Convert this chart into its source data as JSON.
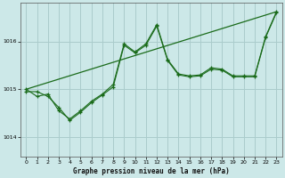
{
  "title": "Graphe pression niveau de la mer (hPa)",
  "background_color": "#cce8e8",
  "grid_color": "#aacccc",
  "line_color": "#1a6b1a",
  "marker_color": "#1a6b1a",
  "xlim": [
    -0.5,
    23.5
  ],
  "ylim": [
    1013.6,
    1016.8
  ],
  "yticks": [
    1014,
    1015,
    1016
  ],
  "xticks": [
    0,
    1,
    2,
    3,
    4,
    5,
    6,
    7,
    8,
    9,
    10,
    11,
    12,
    13,
    14,
    15,
    16,
    17,
    18,
    19,
    20,
    21,
    22,
    23
  ],
  "series1": {
    "x": [
      0,
      1,
      2,
      3,
      4,
      5,
      6,
      7,
      8,
      9,
      10,
      11,
      12,
      13,
      14,
      15,
      16,
      17,
      18,
      19,
      20,
      21,
      22,
      23
    ],
    "y": [
      1015.0,
      1014.85,
      1014.9,
      1014.55,
      1014.38,
      1014.55,
      1014.75,
      1014.9,
      1015.1,
      1015.95,
      1015.78,
      1015.95,
      1016.35,
      1015.62,
      1015.32,
      1015.28,
      1015.3,
      1015.45,
      1015.42,
      1015.28,
      1015.28,
      1015.28,
      1016.1,
      1016.62
    ]
  },
  "series2": {
    "x": [
      0,
      1,
      2,
      3,
      4,
      5,
      6,
      7,
      8,
      9,
      10,
      11,
      12,
      13,
      14,
      15,
      16,
      17,
      18,
      19,
      20,
      21,
      22,
      23
    ],
    "y": [
      1014.95,
      1014.95,
      1014.85,
      1014.62,
      1014.35,
      1014.52,
      1014.72,
      1014.88,
      1015.05,
      1015.92,
      1015.76,
      1015.92,
      1016.32,
      1015.6,
      1015.3,
      1015.26,
      1015.28,
      1015.42,
      1015.4,
      1015.26,
      1015.26,
      1015.26,
      1016.08,
      1016.6
    ]
  },
  "trend_line": {
    "x": [
      0,
      23
    ],
    "y": [
      1015.0,
      1016.62
    ]
  }
}
